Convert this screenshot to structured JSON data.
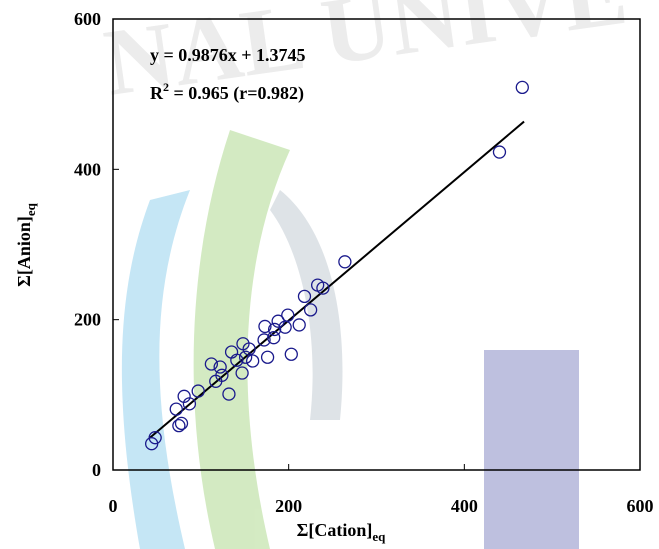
{
  "chart_data": {
    "type": "scatter",
    "xlabel": "Σ[Cation]",
    "xlabel_sub": "eq",
    "ylabel": "Σ[Anion]",
    "ylabel_sub": "eq",
    "equation": "y = 0.9876x + 1.3745",
    "r2_base": "R",
    "r2_sup": "2",
    "r2_rest": " = 0.965 (r=0.982)",
    "watermark": "NAL UNIVE",
    "xlim": [
      0,
      600
    ],
    "ylim": [
      0,
      600
    ],
    "xticks": [
      0,
      200,
      400,
      600
    ],
    "yticks": [
      0,
      200,
      400,
      600
    ],
    "grid": false,
    "color": "#1a1a8c",
    "x": [
      44,
      48,
      75,
      78,
      72,
      81,
      87,
      97,
      112,
      117,
      122,
      124,
      132,
      135,
      141,
      147,
      148,
      151,
      155,
      159,
      172,
      173,
      176,
      183,
      184,
      188,
      196,
      199,
      203,
      212,
      218,
      225,
      233,
      239,
      264,
      440,
      466
    ],
    "values": [
      35,
      43,
      59,
      62,
      81,
      98,
      88,
      105,
      141,
      118,
      137,
      126,
      101,
      157,
      146,
      129,
      168,
      150,
      161,
      145,
      173,
      191,
      150,
      176,
      187,
      198,
      190,
      206,
      154,
      193,
      231,
      213,
      246,
      242,
      277,
      423,
      509
    ],
    "fit_line": {
      "color": "#000000",
      "x": [
        42,
        468
      ],
      "values": [
        42.85,
        463.57
      ]
    }
  }
}
